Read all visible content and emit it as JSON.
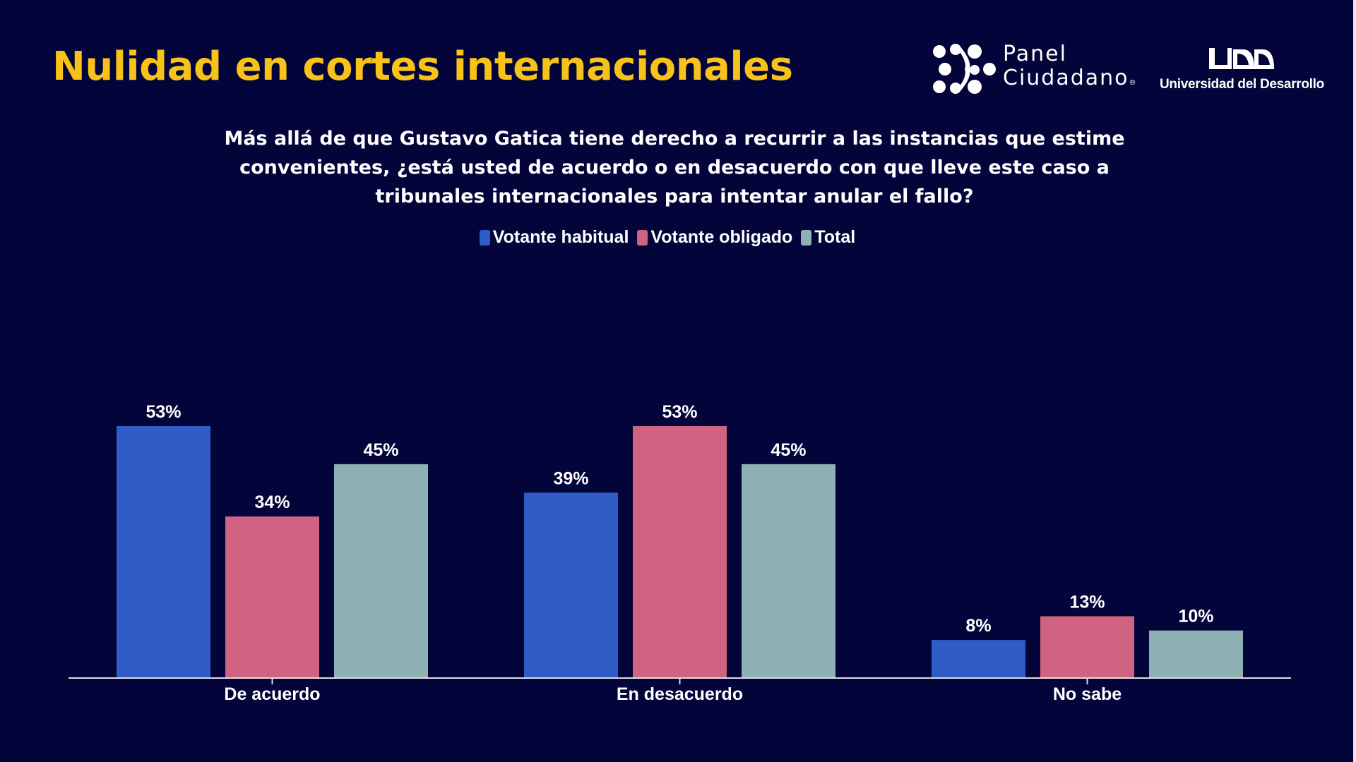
{
  "header": {
    "title": "Nulidad en cortes internacionales",
    "logo_panel": {
      "line1": "Panel",
      "line2": "Ciudadano",
      "mark": "®"
    },
    "logo_udd": {
      "mark": "UDD",
      "name": "Universidad del Desarrollo"
    }
  },
  "chart_data": {
    "type": "bar",
    "title": "Más allá de que Gustavo Gatica tiene derecho a recurrir a las instancias que estime convenientes, ¿está usted de acuerdo o en desacuerdo con que lleve este caso a tribunales internacionales para intentar anular el fallo?",
    "categories": [
      "De acuerdo",
      "En desacuerdo",
      "No sabe"
    ],
    "series": [
      {
        "name": "Votante habitual",
        "color": "#2f5cc6",
        "values": [
          53,
          39,
          8
        ]
      },
      {
        "name": "Votante obligado",
        "color": "#d06282",
        "values": [
          34,
          53,
          13
        ]
      },
      {
        "name": "Total",
        "color": "#8fb1b4",
        "values": [
          45,
          45,
          10
        ]
      }
    ],
    "value_suffix": "%",
    "ylim": [
      0,
      53
    ],
    "legend": "top-center",
    "grid": false,
    "xlabel": "",
    "ylabel": ""
  }
}
